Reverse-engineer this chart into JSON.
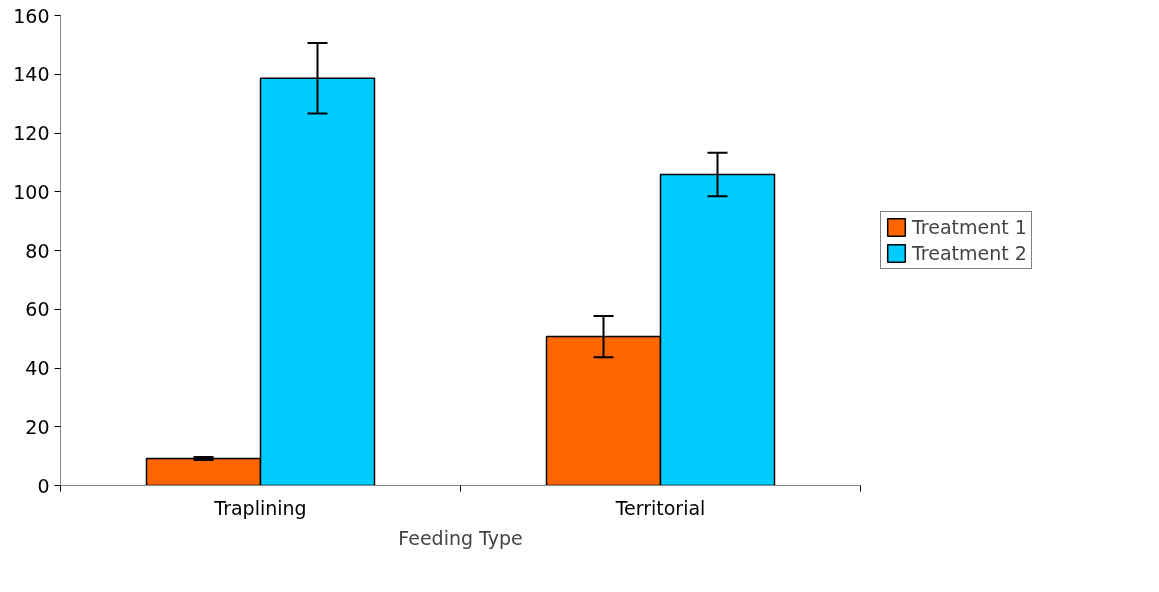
{
  "chart_data": {
    "type": "bar",
    "xlabel": "Feeding Type",
    "categories": [
      "Traplining",
      "Territorial"
    ],
    "series": [
      {
        "name": "Treatment 1",
        "color": "#ff6600",
        "values": [
          9.2,
          50.7
        ],
        "errors": [
          0.5,
          7
        ]
      },
      {
        "name": "Treatment 2",
        "color": "#00ccff",
        "values": [
          138.6,
          105.9
        ],
        "errors": [
          12,
          7.4
        ]
      }
    ],
    "ylim": [
      0,
      160
    ],
    "yticks": [
      0,
      20,
      40,
      60,
      80,
      100,
      120,
      140,
      160
    ],
    "grid": false,
    "legend": "right"
  }
}
